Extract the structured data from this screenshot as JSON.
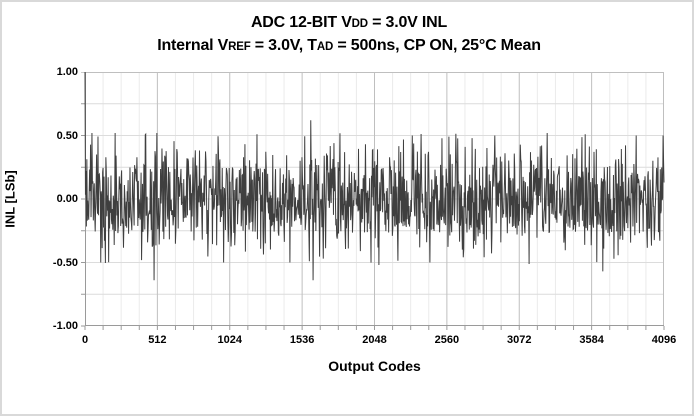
{
  "header": {
    "title_text": "ADC 12-BIT VDD = 3.0V INL",
    "title_segments": [
      {
        "text": "ADC 12-BIT V"
      },
      {
        "text": "DD",
        "small": true
      },
      {
        "text": " = 3.0V INL"
      }
    ],
    "subtitle_text": "Internal VREF = 3.0V, TAD = 500ns, CP ON, 25°C Mean",
    "subtitle_segments": [
      {
        "text": "Internal V"
      },
      {
        "text": "REF",
        "small": true
      },
      {
        "text": " = 3.0V, T"
      },
      {
        "text": "AD",
        "small": true
      },
      {
        "text": " = 500ns, CP ON, 25°C Mean"
      }
    ]
  },
  "chart_data": {
    "type": "line",
    "title": "ADC 12-BIT VDD = 3.0V INL",
    "subtitle": "Internal VREF = 3.0V, TAD = 500ns, CP ON, 25°C Mean",
    "xlabel": "Output Codes",
    "ylabel": "INL [LSb]",
    "xlim": [
      0,
      4096
    ],
    "ylim": [
      -1.0,
      1.0
    ],
    "x_major_ticks": [
      0,
      512,
      1024,
      1536,
      2048,
      2560,
      3072,
      3584,
      4096
    ],
    "x_tick_labels": [
      "0",
      "512",
      "1024",
      "1536",
      "2048",
      "2560",
      "3072",
      "3584",
      "4096"
    ],
    "x_minor_step": 128,
    "y_major_ticks": [
      1.0,
      0.5,
      0.0,
      -0.5,
      -1.0
    ],
    "y_tick_labels": [
      "1.00",
      "0.50",
      "0.00",
      "-0.50",
      "-1.00"
    ],
    "y_minor_step": 0.25,
    "grid": {
      "show": true,
      "major_v_color": "#bfbfbf",
      "minor_v_color": "#ebebeb",
      "h_color": "#dcdcdc",
      "border_color": "#bfbfbf",
      "axis_color": "#9a9a9a",
      "tick_len": 4
    },
    "legend": "none",
    "series": [
      {
        "name": "INL",
        "color": "#3f3f3f",
        "stroke_width": 1,
        "n_codes": 4096,
        "points_rendered": 1250,
        "typical_band": [
          -0.27,
          0.27
        ],
        "max_point": [
          0,
          1.0
        ],
        "min_point": [
          1612,
          -0.64
        ],
        "notable_points": [
          [
            0,
            1.0
          ],
          [
            110,
            -0.5
          ],
          [
            212,
            0.52
          ],
          [
            430,
            0.51
          ],
          [
            490,
            -0.64
          ],
          [
            509,
            0.52
          ],
          [
            980,
            -0.5
          ],
          [
            1216,
            0.51
          ],
          [
            1450,
            -0.5
          ],
          [
            1598,
            0.62
          ],
          [
            1612,
            -0.64
          ],
          [
            2080,
            -0.52
          ],
          [
            2440,
            -0.5
          ],
          [
            2900,
            0.5
          ],
          [
            3270,
            0.52
          ],
          [
            3538,
            0.51
          ],
          [
            3663,
            -0.57
          ],
          [
            3900,
            0.5
          ],
          [
            4088,
            0.5
          ]
        ],
        "noise": {
          "seed": 20131,
          "levels": [
            {
              "p": 0.55,
              "lo": 0.0,
              "hi": 0.17
            },
            {
              "p": 0.27,
              "lo": 0.17,
              "hi": 0.27
            },
            {
              "p": 0.13,
              "lo": 0.27,
              "hi": 0.4
            },
            {
              "p": 0.045,
              "lo": 0.4,
              "hi": 0.5
            },
            {
              "p": 0.005,
              "lo": 0.5,
              "hi": 0.52
            }
          ]
        }
      }
    ]
  }
}
